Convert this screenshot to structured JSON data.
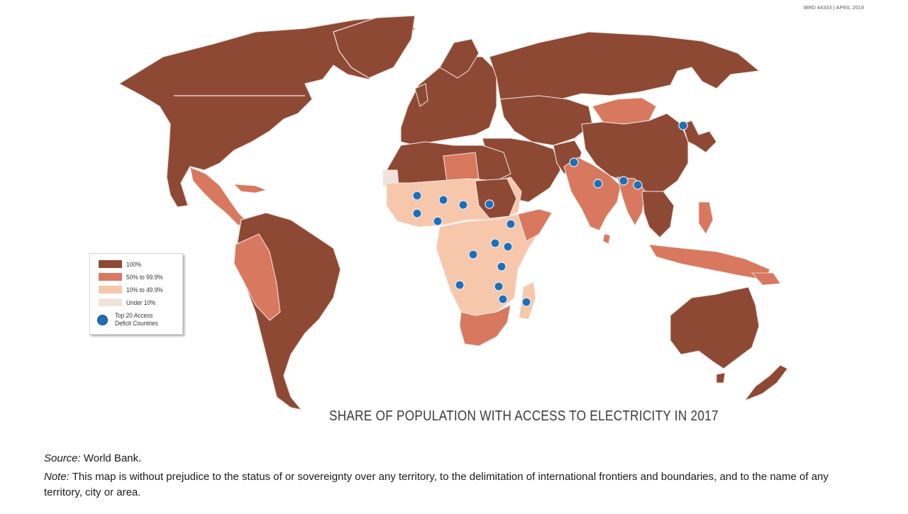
{
  "ibrd_label": "IBRD 44333 | APRIL 2019",
  "title": "SHARE OF POPULATION WITH ACCESS TO ELECTRICITY IN 2017",
  "colors": {
    "c100": "#8e4935",
    "c50": "#d8785f",
    "c10": "#f7c7ac",
    "cUnder": "#f1e2dc",
    "dot": "#1f6fb6",
    "border": "#f6e9e3"
  },
  "legend": {
    "items": [
      {
        "label": "100%",
        "color": "#8e4935"
      },
      {
        "label": "50% to 99.9%",
        "color": "#d8785f"
      },
      {
        "label": "10% to 49.9%",
        "color": "#f7c7ac"
      },
      {
        "label": "Under 10%",
        "color": "#f1e2dc"
      }
    ],
    "dot_label_line1": "Top 20 Access",
    "dot_label_line2": "Deficit Countries"
  },
  "source_label": "Source:",
  "source_text": " World Bank.",
  "note_label": "Note:",
  "note_text": " This map is without prejudice to the status of or sovereignty over any territory, to the delimitation of international frontiers and boundaries, and to the name of any territory, city or area."
}
